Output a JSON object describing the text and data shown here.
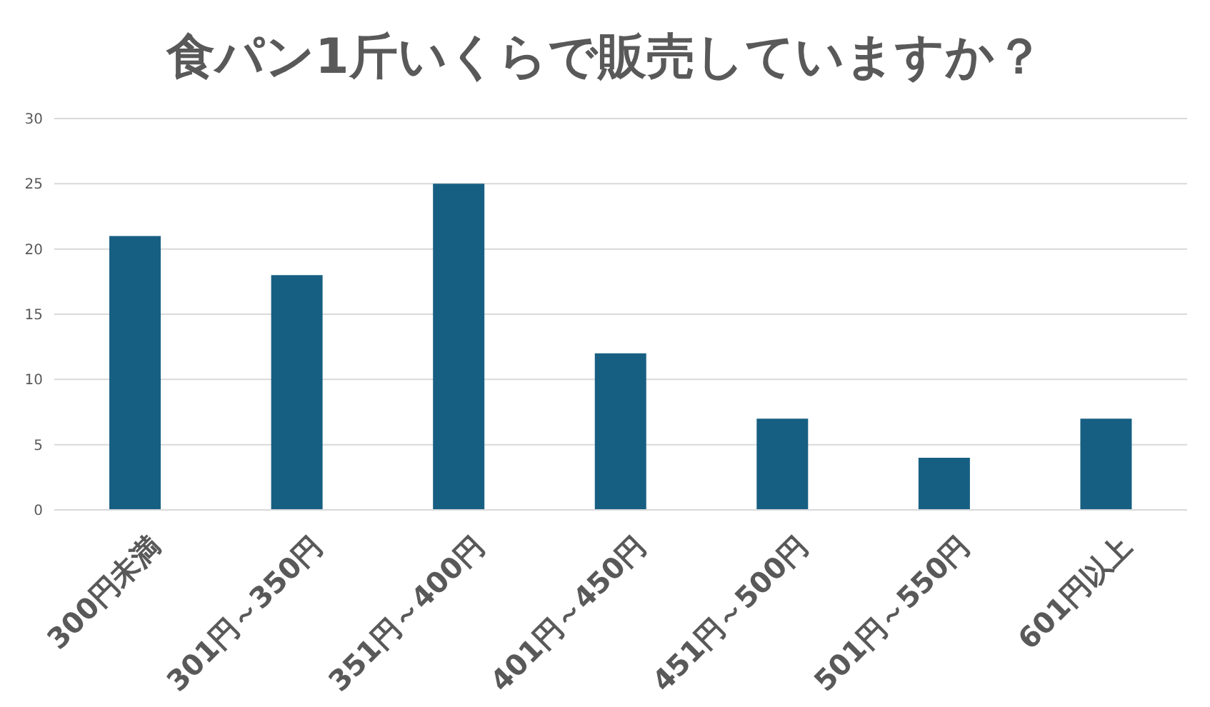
{
  "chart_data": {
    "type": "bar",
    "title": "食パン1斤いくらで販売していますか？",
    "categories": [
      "300円未満",
      "301円～350円",
      "351円～400円",
      "401円～450円",
      "451円～500円",
      "501円～550円",
      "601円以上"
    ],
    "values": [
      21,
      18,
      25,
      12,
      7,
      4,
      7
    ],
    "color": "#175f82",
    "ylim": [
      0,
      30
    ],
    "yticks": [
      0,
      5,
      10,
      15,
      20,
      25,
      30
    ],
    "grid": "y"
  }
}
